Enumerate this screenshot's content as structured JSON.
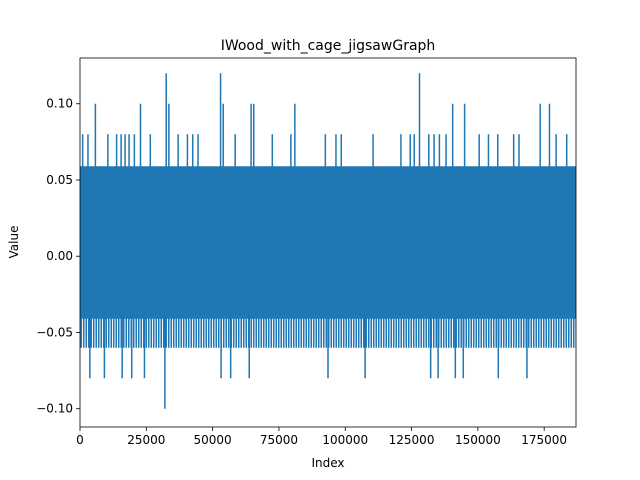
{
  "chart_data": {
    "type": "line",
    "title": "IWood_with_cage_jigsawGraph",
    "xlabel": "Index",
    "ylabel": "Value",
    "xlim": [
      0,
      187000
    ],
    "ylim": [
      -0.112,
      0.13
    ],
    "xticks": [
      0,
      25000,
      50000,
      75000,
      100000,
      125000,
      150000,
      175000
    ],
    "xtick_labels": [
      "0",
      "25000",
      "50000",
      "75000",
      "100000",
      "125000",
      "150000",
      "175000"
    ],
    "yticks": [
      -0.1,
      -0.05,
      0.0,
      0.05,
      0.1
    ],
    "ytick_labels": [
      "−0.10",
      "−0.05",
      "0.00",
      "0.05",
      "0.10"
    ],
    "grid": false,
    "legend": "none",
    "series": [
      {
        "color": "#1f77b4",
        "n_points": 187000,
        "band_envelope": {
          "upper": 0.059,
          "lower": -0.041
        },
        "dense_core": {
          "upper": 0.04,
          "lower": -0.06
        },
        "upper_spikes": [
          {
            "x": 1000,
            "y": 0.08
          },
          {
            "x": 3000,
            "y": 0.08
          },
          {
            "x": 5800,
            "y": 0.1
          },
          {
            "x": 10500,
            "y": 0.08
          },
          {
            "x": 13800,
            "y": 0.08
          },
          {
            "x": 15500,
            "y": 0.08
          },
          {
            "x": 17000,
            "y": 0.08
          },
          {
            "x": 18500,
            "y": 0.08
          },
          {
            "x": 20500,
            "y": 0.08
          },
          {
            "x": 22800,
            "y": 0.1
          },
          {
            "x": 26500,
            "y": 0.08
          },
          {
            "x": 32500,
            "y": 0.12
          },
          {
            "x": 33500,
            "y": 0.1
          },
          {
            "x": 37000,
            "y": 0.08
          },
          {
            "x": 40500,
            "y": 0.08
          },
          {
            "x": 42500,
            "y": 0.08
          },
          {
            "x": 44500,
            "y": 0.08
          },
          {
            "x": 53000,
            "y": 0.12
          },
          {
            "x": 54000,
            "y": 0.1
          },
          {
            "x": 58500,
            "y": 0.08
          },
          {
            "x": 64500,
            "y": 0.1
          },
          {
            "x": 65500,
            "y": 0.1
          },
          {
            "x": 72500,
            "y": 0.08
          },
          {
            "x": 79500,
            "y": 0.08
          },
          {
            "x": 81000,
            "y": 0.1
          },
          {
            "x": 92500,
            "y": 0.08
          },
          {
            "x": 96500,
            "y": 0.08
          },
          {
            "x": 98500,
            "y": 0.08
          },
          {
            "x": 110500,
            "y": 0.08
          },
          {
            "x": 121000,
            "y": 0.08
          },
          {
            "x": 124500,
            "y": 0.08
          },
          {
            "x": 126000,
            "y": 0.08
          },
          {
            "x": 128000,
            "y": 0.12
          },
          {
            "x": 131500,
            "y": 0.08
          },
          {
            "x": 133500,
            "y": 0.08
          },
          {
            "x": 135500,
            "y": 0.08
          },
          {
            "x": 138000,
            "y": 0.08
          },
          {
            "x": 140500,
            "y": 0.1
          },
          {
            "x": 145000,
            "y": 0.1
          },
          {
            "x": 150500,
            "y": 0.08
          },
          {
            "x": 154000,
            "y": 0.08
          },
          {
            "x": 157500,
            "y": 0.08
          },
          {
            "x": 163500,
            "y": 0.08
          },
          {
            "x": 165500,
            "y": 0.08
          },
          {
            "x": 173500,
            "y": 0.1
          },
          {
            "x": 177000,
            "y": 0.1
          },
          {
            "x": 179500,
            "y": 0.08
          },
          {
            "x": 183500,
            "y": 0.08
          }
        ],
        "lower_spikes": [
          {
            "x": 3700,
            "y": -0.08
          },
          {
            "x": 9200,
            "y": -0.08
          },
          {
            "x": 15900,
            "y": -0.08
          },
          {
            "x": 19500,
            "y": -0.08
          },
          {
            "x": 24300,
            "y": -0.08
          },
          {
            "x": 32000,
            "y": -0.1
          },
          {
            "x": 53200,
            "y": -0.08
          },
          {
            "x": 56800,
            "y": -0.08
          },
          {
            "x": 63800,
            "y": -0.08
          },
          {
            "x": 93500,
            "y": -0.08
          },
          {
            "x": 107500,
            "y": -0.08
          },
          {
            "x": 132200,
            "y": -0.08
          },
          {
            "x": 135000,
            "y": -0.08
          },
          {
            "x": 141500,
            "y": -0.08
          },
          {
            "x": 144500,
            "y": -0.08
          },
          {
            "x": 157700,
            "y": -0.08
          },
          {
            "x": 168500,
            "y": -0.08
          }
        ]
      }
    ]
  }
}
